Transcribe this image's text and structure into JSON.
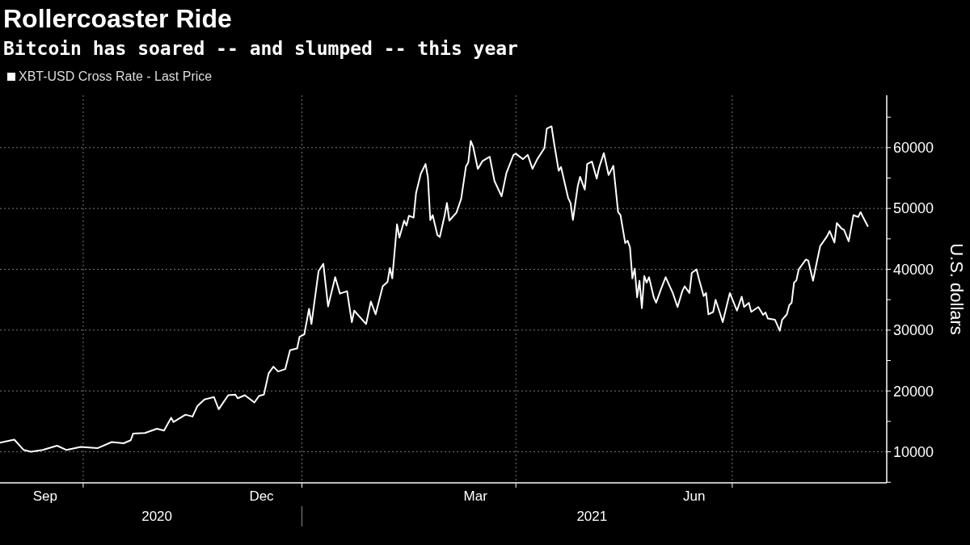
{
  "chart_data": {
    "type": "line",
    "title": "Rollercoaster Ride",
    "subtitle": "Bitcoin has soared -- and slumped -- this year",
    "ylabel": "U.S. dollars",
    "x": [
      "2020-08-27",
      "2020-09-02",
      "2020-09-06",
      "2020-09-09",
      "2020-09-14",
      "2020-09-20",
      "2020-09-24",
      "2020-09-30",
      "2020-10-07",
      "2020-10-13",
      "2020-10-18",
      "2020-10-21",
      "2020-10-22",
      "2020-10-27",
      "2020-11-01",
      "2020-11-04",
      "2020-11-07",
      "2020-11-08",
      "2020-11-13",
      "2020-11-16",
      "2020-11-18",
      "2020-11-21",
      "2020-11-25",
      "2020-11-27",
      "2020-12-01",
      "2020-12-04",
      "2020-12-05",
      "2020-12-08",
      "2020-12-12",
      "2020-12-14",
      "2020-12-16",
      "2020-12-18",
      "2020-12-20",
      "2020-12-22",
      "2020-12-25",
      "2020-12-27",
      "2020-12-30",
      "2020-12-31",
      "2021-01-02",
      "2021-01-04",
      "2021-01-05",
      "2021-01-08",
      "2021-01-10",
      "2021-01-12",
      "2021-01-15",
      "2021-01-17",
      "2021-01-20",
      "2021-01-22",
      "2021-01-23",
      "2021-01-28",
      "2021-01-30",
      "2021-02-01",
      "2021-02-04",
      "2021-02-06",
      "2021-02-07",
      "2021-02-08",
      "2021-02-10",
      "2021-02-11",
      "2021-02-13",
      "2021-02-14",
      "2021-02-15",
      "2021-02-17",
      "2021-02-18",
      "2021-02-20",
      "2021-02-22",
      "2021-02-23",
      "2021-02-24",
      "2021-02-25",
      "2021-02-27",
      "2021-02-28",
      "2021-03-02",
      "2021-03-03",
      "2021-03-04",
      "2021-03-07",
      "2021-03-09",
      "2021-03-11",
      "2021-03-12",
      "2021-03-13",
      "2021-03-14",
      "2021-03-16",
      "2021-03-18",
      "2021-03-21",
      "2021-03-23",
      "2021-03-26",
      "2021-03-28",
      "2021-03-31",
      "2021-04-01",
      "2021-04-04",
      "2021-04-06",
      "2021-04-08",
      "2021-04-10",
      "2021-04-13",
      "2021-04-14",
      "2021-04-16",
      "2021-04-17",
      "2021-04-19",
      "2021-04-20",
      "2021-04-23",
      "2021-04-24",
      "2021-04-25",
      "2021-04-27",
      "2021-04-28",
      "2021-04-30",
      "2021-05-01",
      "2021-05-03",
      "2021-05-05",
      "2021-05-06",
      "2021-05-08",
      "2021-05-10",
      "2021-05-12",
      "2021-05-14",
      "2021-05-15",
      "2021-05-17",
      "2021-05-18",
      "2021-05-19",
      "2021-05-20",
      "2021-05-21",
      "2021-05-22",
      "2021-05-23",
      "2021-05-24",
      "2021-05-25",
      "2021-05-26",
      "2021-05-27",
      "2021-05-29",
      "2021-05-30",
      "2021-06-01",
      "2021-06-03",
      "2021-06-06",
      "2021-06-08",
      "2021-06-10",
      "2021-06-11",
      "2021-06-13",
      "2021-06-14",
      "2021-06-16",
      "2021-06-17",
      "2021-06-19",
      "2021-06-20",
      "2021-06-21",
      "2021-06-23",
      "2021-06-24",
      "2021-06-26",
      "2021-06-27",
      "2021-06-30",
      "2021-07-03",
      "2021-07-05",
      "2021-07-06",
      "2021-07-08",
      "2021-07-09",
      "2021-07-12",
      "2021-07-14",
      "2021-07-15",
      "2021-07-16",
      "2021-07-19",
      "2021-07-21",
      "2021-07-22",
      "2021-07-24",
      "2021-07-25",
      "2021-07-26",
      "2021-07-27",
      "2021-07-28",
      "2021-07-29",
      "2021-08-01",
      "2021-08-02",
      "2021-08-04",
      "2021-08-05",
      "2021-08-07",
      "2021-08-10",
      "2021-08-11",
      "2021-08-13",
      "2021-08-14",
      "2021-08-16",
      "2021-08-17",
      "2021-08-19",
      "2021-08-21",
      "2021-08-23",
      "2021-08-24",
      "2021-08-25",
      "2021-08-27"
    ],
    "series": [
      {
        "name": "XBT-USD Cross Rate - Last Price",
        "color": "#ffffff",
        "values": [
          11500,
          12000,
          10300,
          10000,
          10300,
          11000,
          10300,
          10800,
          10600,
          11600,
          11400,
          11900,
          13000,
          13100,
          13800,
          13500,
          15600,
          14900,
          16100,
          15800,
          17500,
          18600,
          19000,
          17000,
          19300,
          19400,
          18800,
          19300,
          18100,
          19200,
          19400,
          22900,
          24000,
          23200,
          23600,
          26700,
          27000,
          28900,
          29300,
          33500,
          31000,
          39700,
          40900,
          33900,
          38700,
          36000,
          36400,
          31300,
          33200,
          31000,
          34700,
          32600,
          37200,
          37900,
          40200,
          38500,
          47400,
          45200,
          48000,
          47200,
          48800,
          48500,
          52500,
          55700,
          57300,
          55100,
          48100,
          48900,
          45600,
          45300,
          48800,
          50900,
          48000,
          49300,
          51600,
          56900,
          57600,
          61100,
          60200,
          56500,
          57800,
          58500,
          54500,
          52000,
          55800,
          58800,
          59000,
          58100,
          58800,
          56500,
          58100,
          59900,
          63100,
          63500,
          60900,
          56200,
          56800,
          51700,
          50900,
          48100,
          53600,
          55200,
          53100,
          57300,
          57700,
          54900,
          56700,
          59100,
          55500,
          57000,
          49400,
          48900,
          44300,
          44700,
          43600,
          38500,
          40100,
          35400,
          38100,
          33600,
          38900,
          37800,
          38700,
          35400,
          34500,
          36700,
          38700,
          36100,
          33800,
          36400,
          37200,
          36100,
          39400,
          40000,
          38400,
          35600,
          36100,
          32600,
          33000,
          35000,
          32600,
          31300,
          36100,
          33200,
          35500,
          33800,
          34500,
          33000,
          33800,
          32500,
          32900,
          31900,
          31700,
          29900,
          31700,
          32600,
          34100,
          34500,
          37800,
          38200,
          40000,
          41600,
          41400,
          38100,
          40100,
          43800,
          45500,
          46300,
          44400,
          47600,
          46700,
          46500,
          44600,
          48900,
          48600,
          49400,
          48600,
          47100
        ]
      }
    ],
    "xlim": [
      "2020-08-27",
      "2021-09-04"
    ],
    "xticks": [
      {
        "value": "2020-09-15",
        "label": "Sep"
      },
      {
        "value": "2020-10-01",
        "label": null
      },
      {
        "value": "2020-12-15",
        "label": "Dec"
      },
      {
        "value": "2021-01-01",
        "label": null
      },
      {
        "value": "2021-03-15",
        "label": "Mar"
      },
      {
        "value": "2021-04-01",
        "label": null
      },
      {
        "value": "2021-06-15",
        "label": "Jun"
      },
      {
        "value": "2021-07-01",
        "label": null
      }
    ],
    "x2lim": [
      "2020-08-27",
      "2021-09-04"
    ],
    "x2ticks": [
      {
        "value": "2020-11-01",
        "label": "2020"
      },
      {
        "value": "2021-01-01",
        "label": null
      },
      {
        "value": "2021-05-03",
        "label": "2021"
      }
    ],
    "ylim": [
      4900,
      68600
    ],
    "yticks": [
      {
        "value": 5000,
        "label": null
      },
      10000,
      {
        "value": 15000,
        "label": null
      },
      20000,
      {
        "value": 25000,
        "label": null
      },
      30000,
      {
        "value": 35000,
        "label": null
      },
      40000,
      {
        "value": 45000,
        "label": null
      },
      50000,
      {
        "value": 55000,
        "label": null
      },
      60000,
      {
        "value": 65000,
        "label": null
      }
    ],
    "grid": true,
    "legend": "top left"
  }
}
